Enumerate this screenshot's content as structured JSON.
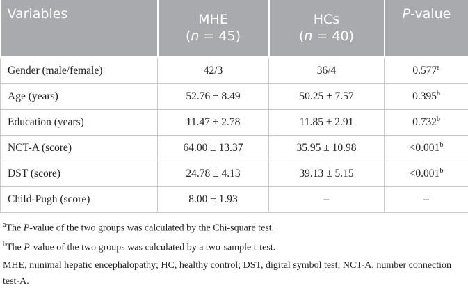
{
  "table": {
    "header": {
      "variables": "Variables",
      "mhe": {
        "line1": "MHE",
        "open": "(",
        "n": "n",
        "rest": " = 45)"
      },
      "hcs": {
        "line1": "HCs",
        "open": "(",
        "n": "n",
        "rest": " = 40)"
      },
      "p": {
        "italic": "P",
        "rest": "-value"
      }
    },
    "rows": [
      [
        "Gender (male/female)",
        "42/3",
        "36/4",
        "0.577",
        "a"
      ],
      [
        "Age (years)",
        "52.76 ± 8.49",
        "50.25 ± 7.57",
        "0.395",
        "b"
      ],
      [
        "Education (years)",
        "11.47 ± 2.78",
        "11.85 ± 2.91",
        "0.732",
        "b"
      ],
      [
        "NCT-A (score)",
        "64.00 ± 13.37",
        "35.95 ± 10.98",
        "<0.001",
        "b"
      ],
      [
        "DST (score)",
        "24.78 ± 4.13",
        "39.13 ± 5.15",
        "<0.001",
        "b"
      ],
      [
        "Child-Pugh (score)",
        "8.00 ± 1.93",
        "–",
        "–",
        null
      ]
    ]
  },
  "footnotes": [
    {
      "mark": "a",
      "pre": "The ",
      "italic": "P",
      "post": "-value of the two groups was calculated by the Chi-square test."
    },
    {
      "mark": "b",
      "pre": "The ",
      "italic": "P",
      "post": "-value of the two groups was calculated by a two-sample t-test."
    }
  ],
  "notes": "MHE, minimal hepatic encephalopathy; HC, healthy control; DST, digital symbol test; NCT-A, number connection test-A."
}
